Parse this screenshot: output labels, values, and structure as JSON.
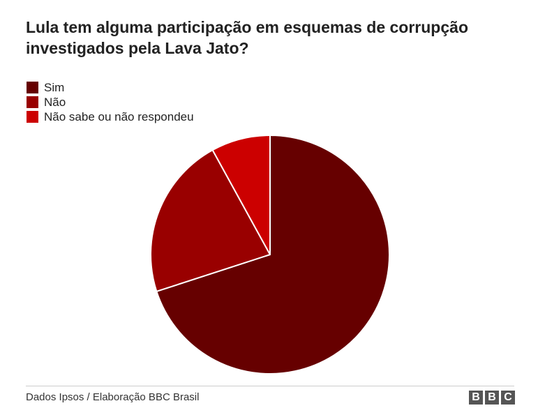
{
  "chart_data": {
    "type": "pie",
    "title": "Lula tem alguma participação em esquemas de corrupção investigados pela Lava Jato?",
    "categories": [
      "Sim",
      "Não",
      "Não sabe ou não respondeu"
    ],
    "values": [
      70,
      22,
      8
    ],
    "colors": [
      "#660000",
      "#990000",
      "#cc0000"
    ],
    "legend_position": "top-left"
  },
  "source": "Dados Ipsos / Elaboração BBC Brasil",
  "logo": [
    "B",
    "B",
    "C"
  ]
}
